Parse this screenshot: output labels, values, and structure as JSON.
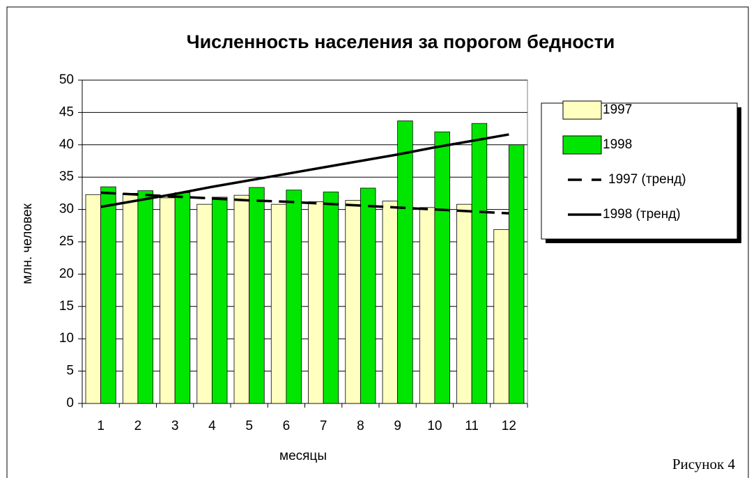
{
  "chart_data": {
    "type": "bar",
    "title": "Численность населения за порогом бедности",
    "caption": "Рисунок 4",
    "x_label": "месяцы",
    "y_label": "млн. человек",
    "categories": [
      "1",
      "2",
      "3",
      "4",
      "5",
      "6",
      "7",
      "8",
      "9",
      "10",
      "11",
      "12"
    ],
    "series": [
      {
        "name": "1997",
        "color": "#ffffc0",
        "kind": "bar",
        "values": [
          32.3,
          32.5,
          31.8,
          30.8,
          32.2,
          30.8,
          31.2,
          31.4,
          31.3,
          30.3,
          30.8,
          26.9
        ]
      },
      {
        "name": "1998",
        "color": "#00e600",
        "kind": "bar",
        "values": [
          33.5,
          32.9,
          32.6,
          31.9,
          33.4,
          33.0,
          32.7,
          33.3,
          43.7,
          42.0,
          43.3,
          40.0
        ]
      },
      {
        "name": "1997 (тренд)",
        "color": "#000000",
        "kind": "trend",
        "dashed": true,
        "values": [
          32.6,
          32.3,
          32.0,
          31.7,
          31.4,
          31.2,
          30.9,
          30.6,
          30.3,
          30.0,
          29.7,
          29.4
        ]
      },
      {
        "name": "1998 (тренд)",
        "color": "#000000",
        "kind": "trend",
        "dashed": false,
        "values": [
          30.4,
          31.4,
          32.4,
          33.5,
          34.5,
          35.5,
          36.5,
          37.5,
          38.5,
          39.6,
          40.6,
          41.6
        ]
      }
    ],
    "ylim": [
      0,
      50
    ],
    "yticks": [
      0,
      5,
      10,
      15,
      20,
      25,
      30,
      35,
      40,
      45,
      50
    ],
    "grid": true,
    "legend": "right"
  }
}
